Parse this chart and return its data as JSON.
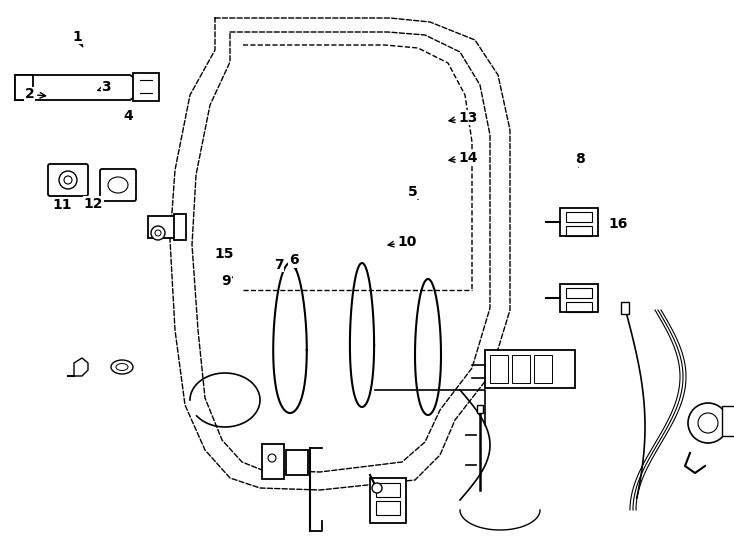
{
  "bg_color": "#ffffff",
  "line_color": "#000000",
  "fig_width": 7.34,
  "fig_height": 5.4,
  "dpi": 100,
  "labels": {
    "1": {
      "lpos": [
        0.105,
        0.068
      ],
      "apos": [
        0.115,
        0.092
      ]
    },
    "2": {
      "lpos": [
        0.04,
        0.175
      ],
      "apos": [
        0.068,
        0.178
      ]
    },
    "3": {
      "lpos": [
        0.145,
        0.162
      ],
      "apos": [
        0.128,
        0.17
      ]
    },
    "4": {
      "lpos": [
        0.175,
        0.215
      ],
      "apos": [
        0.168,
        0.225
      ]
    },
    "5": {
      "lpos": [
        0.563,
        0.355
      ],
      "apos": [
        0.57,
        0.37
      ]
    },
    "6": {
      "lpos": [
        0.4,
        0.482
      ],
      "apos": [
        0.405,
        0.508
      ]
    },
    "7": {
      "lpos": [
        0.38,
        0.49
      ],
      "apos": [
        0.388,
        0.498
      ]
    },
    "8": {
      "lpos": [
        0.79,
        0.295
      ],
      "apos": [
        0.788,
        0.31
      ]
    },
    "9": {
      "lpos": [
        0.308,
        0.52
      ],
      "apos": [
        0.318,
        0.512
      ]
    },
    "10": {
      "lpos": [
        0.555,
        0.448
      ],
      "apos": [
        0.523,
        0.455
      ]
    },
    "11": {
      "lpos": [
        0.085,
        0.38
      ],
      "apos": [
        0.08,
        0.368
      ]
    },
    "12": {
      "lpos": [
        0.127,
        0.378
      ],
      "apos": [
        0.122,
        0.367
      ]
    },
    "13": {
      "lpos": [
        0.638,
        0.218
      ],
      "apos": [
        0.606,
        0.225
      ]
    },
    "14": {
      "lpos": [
        0.638,
        0.292
      ],
      "apos": [
        0.606,
        0.298
      ]
    },
    "15": {
      "lpos": [
        0.305,
        0.47
      ],
      "apos": [
        0.318,
        0.465
      ]
    },
    "16": {
      "lpos": [
        0.842,
        0.415
      ],
      "apos": [
        0.84,
        0.428
      ]
    }
  }
}
